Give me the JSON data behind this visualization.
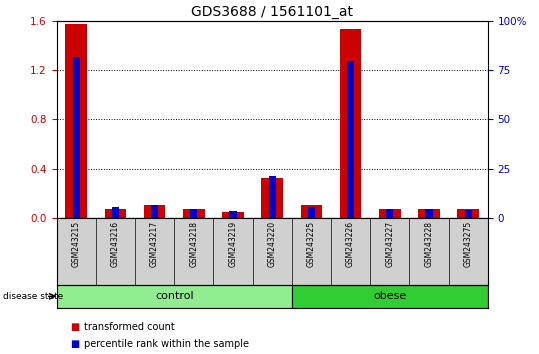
{
  "title": "GDS3688 / 1561101_at",
  "samples": [
    "GSM243215",
    "GSM243216",
    "GSM243217",
    "GSM243218",
    "GSM243219",
    "GSM243220",
    "GSM243225",
    "GSM243226",
    "GSM243227",
    "GSM243228",
    "GSM243275"
  ],
  "transformed_count": [
    1.58,
    0.07,
    0.1,
    0.07,
    0.05,
    0.32,
    0.1,
    1.54,
    0.07,
    0.07,
    0.07
  ],
  "percentile_rank_pct": [
    82,
    5.5,
    6.5,
    4.5,
    3.5,
    21,
    5.5,
    80,
    4.5,
    4.5,
    4.0
  ],
  "groups": [
    {
      "label": "control",
      "start": 0,
      "end": 6,
      "color": "#90ee90"
    },
    {
      "label": "obese",
      "start": 6,
      "end": 11,
      "color": "#32cd32"
    }
  ],
  "ylim_left": [
    0,
    1.6
  ],
  "ylim_right": [
    0,
    100
  ],
  "yticks_left": [
    0,
    0.4,
    0.8,
    1.2,
    1.6
  ],
  "yticks_right": [
    0,
    25,
    50,
    75,
    100
  ],
  "ytick_right_labels": [
    "0",
    "25",
    "50",
    "75",
    "100%"
  ],
  "bar_color_red": "#cc0000",
  "bar_color_blue": "#0000cc",
  "title_fontsize": 10,
  "tick_label_color_left": "#cc0000",
  "tick_label_color_right": "#0000cc",
  "disease_state_label": "disease state",
  "legend_items": [
    {
      "label": "transformed count",
      "color": "#cc0000"
    },
    {
      "label": "percentile rank within the sample",
      "color": "#0000cc"
    }
  ],
  "red_bar_width": 0.55,
  "blue_bar_width": 0.18
}
